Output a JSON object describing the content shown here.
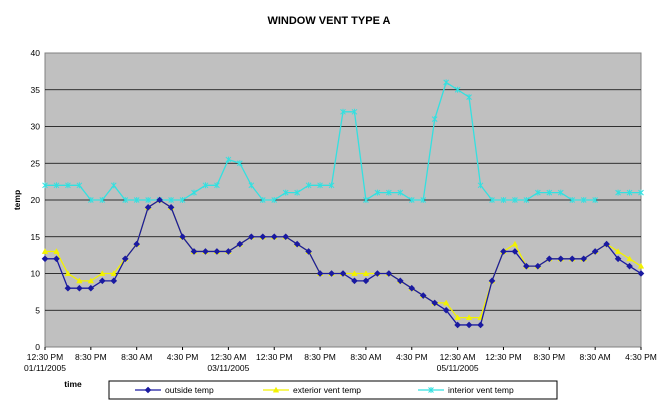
{
  "chart_data": {
    "type": "line",
    "title": "WINDOW VENT TYPE A",
    "xlabel": "time",
    "ylabel": "temp",
    "ylim": [
      0,
      40
    ],
    "yticks": [
      0,
      5,
      10,
      15,
      20,
      25,
      30,
      35,
      40
    ],
    "grid": true,
    "legend_position": "bottom",
    "x_tick_labels": [
      {
        "label": "12:30 PM",
        "label2": "01/11/2005"
      },
      {
        "label": "8:30 PM",
        "label2": ""
      },
      {
        "label": "8:30 AM",
        "label2": ""
      },
      {
        "label": "4:30 PM",
        "label2": ""
      },
      {
        "label": "12:30 AM",
        "label2": "03/11/2005"
      },
      {
        "label": "12:30 PM",
        "label2": ""
      },
      {
        "label": "8:30 PM",
        "label2": ""
      },
      {
        "label": "8:30 AM",
        "label2": ""
      },
      {
        "label": "4:30 PM",
        "label2": ""
      },
      {
        "label": "12:30 AM",
        "label2": "05/11/2005"
      },
      {
        "label": "12:30 PM",
        "label2": ""
      },
      {
        "label": "8:30 PM",
        "label2": ""
      },
      {
        "label": "8:30 AM",
        "label2": ""
      },
      {
        "label": "4:30 PM",
        "label2": ""
      }
    ],
    "series": [
      {
        "name": "outside temp",
        "color": "#1a1aa0",
        "marker": "diamond",
        "values": [
          12,
          12,
          8,
          8,
          8,
          9,
          9,
          12,
          14,
          19,
          20,
          19,
          15,
          13,
          13,
          13,
          13,
          14,
          15,
          15,
          15,
          15,
          14,
          13,
          10,
          10,
          10,
          9,
          9,
          10,
          10,
          9,
          8,
          7,
          6,
          5,
          3,
          3,
          3,
          9,
          13,
          13,
          11,
          11,
          12,
          12,
          12,
          12,
          13,
          14,
          12,
          11,
          10
        ]
      },
      {
        "name": "exterior vent temp",
        "color": "#f2f200",
        "marker": "triangle",
        "values": [
          13,
          13,
          10,
          9,
          9,
          10,
          10,
          12,
          14,
          19,
          20,
          19,
          15,
          13,
          13,
          13,
          13,
          14,
          15,
          15,
          15,
          15,
          14,
          13,
          10,
          10,
          10,
          10,
          10,
          10,
          10,
          9,
          8,
          7,
          6,
          6,
          4,
          4,
          4,
          9,
          13,
          14,
          11,
          11,
          12,
          12,
          12,
          12,
          13,
          14,
          13,
          12,
          11
        ]
      },
      {
        "name": "interior vent temp",
        "color": "#33e0e0",
        "marker": "asterisk",
        "values": [
          22,
          22,
          22,
          22,
          20,
          20,
          22,
          20,
          20,
          20,
          20,
          20,
          20,
          21,
          22,
          22,
          25.5,
          25,
          22,
          20,
          20,
          21,
          21,
          22,
          22,
          22,
          32,
          32,
          20,
          21,
          21,
          21,
          20,
          20,
          31,
          36,
          35,
          34,
          22,
          20,
          20,
          20,
          20,
          21,
          21,
          21,
          20,
          20,
          20,
          null,
          21,
          21,
          21
        ]
      }
    ]
  }
}
